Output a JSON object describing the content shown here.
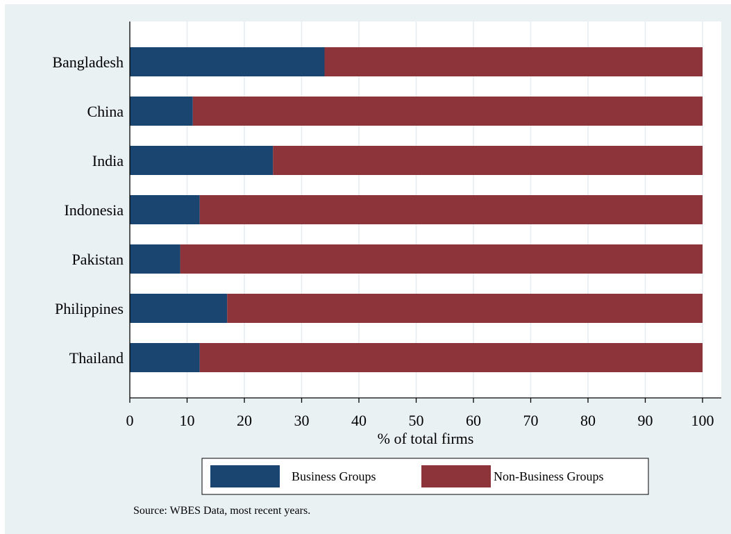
{
  "chart_data": {
    "type": "bar",
    "orientation": "horizontal",
    "stacked": true,
    "categories": [
      "Bangladesh",
      "China",
      "India",
      "Indonesia",
      "Pakistan",
      "Philippines",
      "Thailand"
    ],
    "series": [
      {
        "name": "Business Groups",
        "color": "#1a4570",
        "values": [
          34,
          11,
          25,
          12.2,
          8.8,
          17,
          12.2
        ]
      },
      {
        "name": "Non-Business Groups",
        "color": "#8c3439",
        "values": [
          66,
          89,
          75,
          87.8,
          91.2,
          83,
          87.8
        ]
      }
    ],
    "xlabel": "% of total firms",
    "xlim": [
      0,
      100
    ],
    "xticks": [
      0,
      10,
      20,
      30,
      40,
      50,
      60,
      70,
      80,
      90,
      100
    ],
    "grid": true,
    "legend_position": "bottom",
    "note": "Source: WBES Data, most recent years.",
    "background_color": "#eaf1f3",
    "plot_background_color": "#ffffff"
  }
}
